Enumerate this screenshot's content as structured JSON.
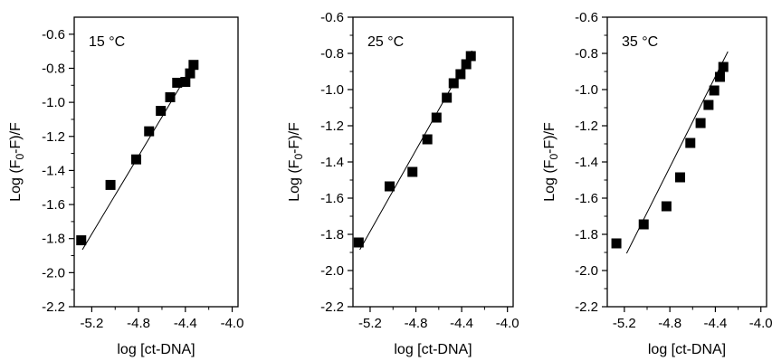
{
  "chart_data": [
    {
      "type": "scatter",
      "annotation": "15 °C",
      "xlabel": "log [ct-DNA]",
      "ylabel": "Log (F0-F)/F",
      "ylabel_parts": {
        "pre": "Log (F",
        "sub": "0",
        "post": "-F)/F"
      },
      "xlim": [
        -5.35,
        -3.95
      ],
      "ylim": [
        -2.2,
        -0.5
      ],
      "xticks": [
        -5.2,
        -4.8,
        -4.4,
        -4.0
      ],
      "xtick_labels": [
        "-5.2",
        "-4.8",
        "-4.4",
        "-4.0"
      ],
      "yticks": [
        -2.2,
        -2.0,
        -1.8,
        -1.6,
        -1.4,
        -1.2,
        -1.0,
        -0.8,
        -0.6
      ],
      "ytick_labels": [
        "-2.2",
        "-2.0",
        "-1.8",
        "-1.6",
        "-1.4",
        "-1.2",
        "-1.0",
        "-0.8",
        "-0.6"
      ],
      "grid": false,
      "series": [
        {
          "marker": "square",
          "points": [
            [
              -5.29,
              -1.81
            ],
            [
              -5.04,
              -1.485
            ],
            [
              -4.82,
              -1.335
            ],
            [
              -4.71,
              -1.17
            ],
            [
              -4.61,
              -1.05
            ],
            [
              -4.53,
              -0.97
            ],
            [
              -4.47,
              -0.885
            ],
            [
              -4.4,
              -0.88
            ],
            [
              -4.36,
              -0.83
            ],
            [
              -4.33,
              -0.78
            ]
          ]
        }
      ],
      "fit_line": {
        "x": [
          -5.28,
          -4.32
        ],
        "y": [
          -1.865,
          -0.765
        ]
      }
    },
    {
      "type": "scatter",
      "annotation": "25 °C",
      "xlabel": "log [ct-DNA]",
      "ylabel": "Log (F0-F)/F",
      "ylabel_parts": {
        "pre": "Log (F",
        "sub": "0",
        "post": "-F)/F"
      },
      "xlim": [
        -5.35,
        -3.95
      ],
      "ylim": [
        -2.2,
        -0.6
      ],
      "xticks": [
        -5.2,
        -4.8,
        -4.4,
        -4.0
      ],
      "xtick_labels": [
        "-5.2",
        "-4.8",
        "-4.4",
        "-4.0"
      ],
      "yticks": [
        -2.2,
        -2.0,
        -1.8,
        -1.6,
        -1.4,
        -1.2,
        -1.0,
        -0.8,
        -0.6
      ],
      "ytick_labels": [
        "-2.2",
        "-2.0",
        "-1.8",
        "-1.6",
        "-1.4",
        "-1.2",
        "-1.0",
        "-0.8",
        "-0.6"
      ],
      "grid": false,
      "series": [
        {
          "marker": "square",
          "points": [
            [
              -5.3,
              -1.845
            ],
            [
              -5.03,
              -1.535
            ],
            [
              -4.83,
              -1.455
            ],
            [
              -4.7,
              -1.275
            ],
            [
              -4.62,
              -1.155
            ],
            [
              -4.53,
              -1.045
            ],
            [
              -4.47,
              -0.965
            ],
            [
              -4.41,
              -0.915
            ],
            [
              -4.36,
              -0.86
            ],
            [
              -4.32,
              -0.815
            ]
          ]
        }
      ],
      "fit_line": {
        "x": [
          -5.29,
          -4.31
        ],
        "y": [
          -1.885,
          -0.785
        ]
      }
    },
    {
      "type": "scatter",
      "annotation": "35 °C",
      "xlabel": "log [ct-DNA]",
      "ylabel": "Log (F0-F)/F",
      "ylabel_parts": {
        "pre": "Log (F",
        "sub": "0",
        "post": "-F)/F"
      },
      "xlim": [
        -5.35,
        -3.95
      ],
      "ylim": [
        -2.2,
        -0.6
      ],
      "xticks": [
        -5.2,
        -4.8,
        -4.4,
        -4.0
      ],
      "xtick_labels": [
        "-5.2",
        "-4.8",
        "-4.4",
        "-4.0"
      ],
      "yticks": [
        -2.2,
        -2.0,
        -1.8,
        -1.6,
        -1.4,
        -1.2,
        -1.0,
        -0.8,
        -0.6
      ],
      "ytick_labels": [
        "-2.2",
        "-2.0",
        "-1.8",
        "-1.6",
        "-1.4",
        "-1.2",
        "-1.0",
        "-0.8",
        "-0.6"
      ],
      "grid": false,
      "series": [
        {
          "marker": "square",
          "points": [
            [
              -5.27,
              -1.85
            ],
            [
              -5.03,
              -1.745
            ],
            [
              -4.83,
              -1.645
            ],
            [
              -4.71,
              -1.485
            ],
            [
              -4.62,
              -1.295
            ],
            [
              -4.53,
              -1.185
            ],
            [
              -4.46,
              -1.085
            ],
            [
              -4.41,
              -1.005
            ],
            [
              -4.36,
              -0.93
            ],
            [
              -4.33,
              -0.875
            ]
          ]
        }
      ],
      "fit_line": {
        "x": [
          -5.18,
          -4.29
        ],
        "y": [
          -1.905,
          -0.79
        ]
      }
    }
  ]
}
